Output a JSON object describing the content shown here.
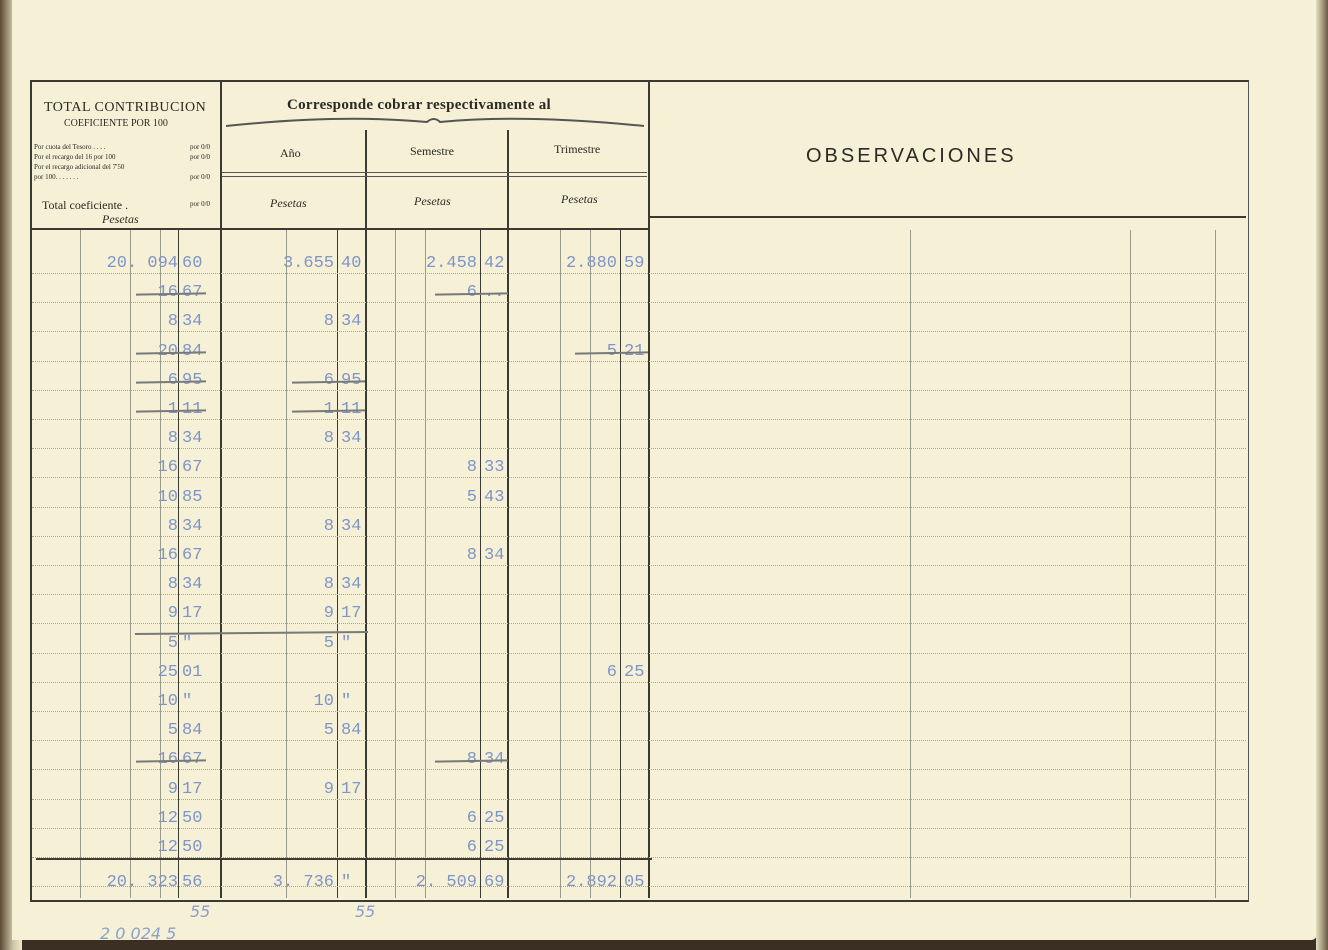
{
  "header": {
    "total_title": "TOTAL CONTRIBUCION",
    "coef_title": "COEFICIENTE POR 100",
    "lines": [
      {
        "label": "Por cuota del Tesoro . . . .",
        "unit": "por 0/0"
      },
      {
        "label": "Por el recargo del 16 por 100",
        "unit": "por 0/0"
      },
      {
        "label": "Por el recargo adicional del 7'50",
        "unit": ""
      },
      {
        "label": "por 100. . . . . . .",
        "unit": "por 0/0"
      }
    ],
    "total_coef": "Total coeficiente .",
    "total_coef_unit": "por 0/0",
    "currency": "Pesetas",
    "corresponde": "Corresponde cobrar respectivamente al",
    "ano": "Año",
    "semestre": "Semestre",
    "trimestre": "Trimestre",
    "observaciones": "OBSERVACIONES"
  },
  "rows": [
    {
      "total": [
        "20. 094",
        "60"
      ],
      "ano": [
        "3.655",
        "40"
      ],
      "sem": [
        "2.458",
        "42"
      ],
      "tri": [
        "2.880",
        "59"
      ]
    },
    {
      "total": [
        "16",
        "67"
      ],
      "total_struck": true,
      "sem": [
        "6",
        ".."
      ],
      "sem_struck": true
    },
    {
      "total": [
        "8",
        "34"
      ],
      "ano": [
        "8",
        "34"
      ]
    },
    {
      "total": [
        "20",
        "84"
      ],
      "total_struck": true,
      "tri": [
        "5",
        "21"
      ],
      "tri_struck": true
    },
    {
      "total": [
        "6",
        "95"
      ],
      "total_struck": true,
      "ano": [
        "6",
        "95"
      ],
      "ano_struck": true
    },
    {
      "total": [
        "1",
        "11"
      ],
      "total_struck": true,
      "ano": [
        "1",
        "11"
      ],
      "ano_struck": true
    },
    {
      "total": [
        "8",
        "34"
      ],
      "ano": [
        "8",
        "34"
      ]
    },
    {
      "total": [
        "16",
        "67"
      ],
      "sem": [
        "8",
        "33"
      ]
    },
    {
      "total": [
        "10",
        "85"
      ],
      "sem": [
        "5",
        "43"
      ]
    },
    {
      "total": [
        "8",
        "34"
      ],
      "ano": [
        "8",
        "34"
      ]
    },
    {
      "total": [
        "16",
        "67"
      ],
      "sem": [
        "8",
        "34"
      ]
    },
    {
      "total": [
        "8",
        "34"
      ],
      "ano": [
        "8",
        "34"
      ]
    },
    {
      "total": [
        "9",
        "17"
      ],
      "ano": [
        "9",
        "17"
      ]
    },
    {
      "total": [
        "5",
        "\""
      ],
      "ano": [
        "5",
        "\""
      ]
    },
    {
      "total": [
        "25",
        "01"
      ],
      "tri": [
        "6",
        "25"
      ]
    },
    {
      "total": [
        "10",
        "\""
      ],
      "ano": [
        "10",
        "\""
      ]
    },
    {
      "total": [
        "5",
        "84"
      ],
      "ano": [
        "5",
        "84"
      ]
    },
    {
      "total": [
        "16",
        "67"
      ],
      "total_struck": true,
      "sem": [
        "8",
        "34"
      ],
      "sem_struck": true
    },
    {
      "total": [
        "9",
        "17"
      ],
      "ano": [
        "9",
        "17"
      ]
    },
    {
      "total": [
        "12",
        "50"
      ],
      "sem": [
        "6",
        "25"
      ]
    },
    {
      "total": [
        "12",
        "50"
      ],
      "sem": [
        "6",
        "25"
      ]
    }
  ],
  "totals": {
    "total": [
      "20. 323",
      "56"
    ],
    "ano": [
      "3. 736",
      "\""
    ],
    "sem": [
      "2. 509",
      "69"
    ],
    "tri": [
      "2.892",
      "05"
    ]
  },
  "handwritten": {
    "note1": "55",
    "note2": "55",
    "note3": "2 0 024 5"
  }
}
